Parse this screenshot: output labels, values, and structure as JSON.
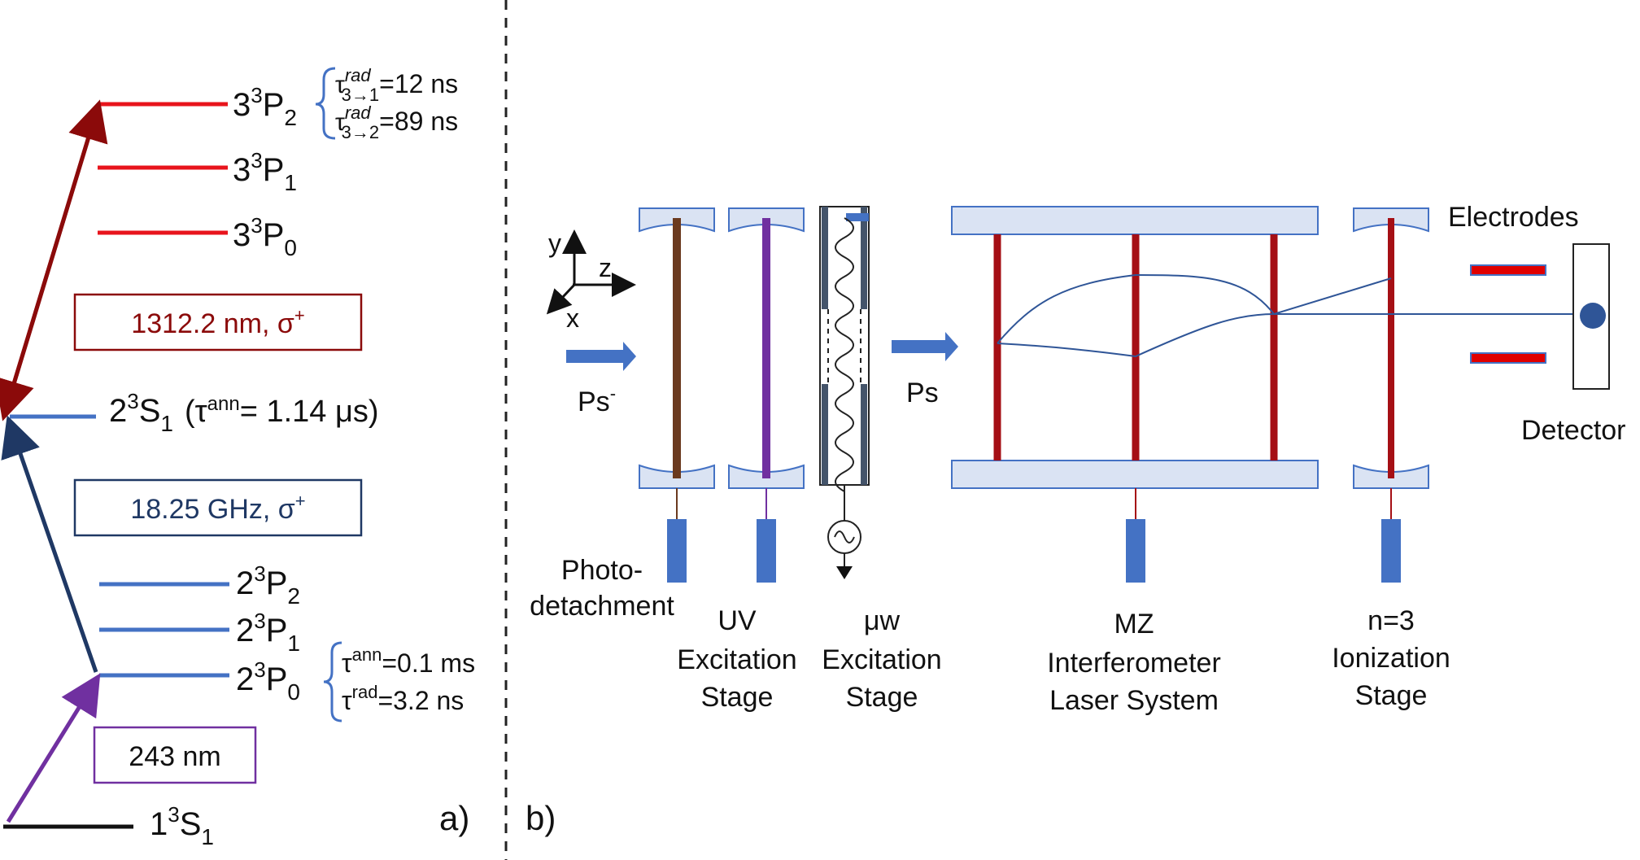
{
  "colors": {
    "red_level": "#e8141c",
    "blue_level": "#4472c4",
    "ground_level": "#111111",
    "dark_red": "#8b0a0a",
    "navy": "#1f3864",
    "purple": "#7030a0",
    "brown": "#6b3a1f",
    "mirror_fill": "#dae3f3",
    "beam_blue": "#2f5597",
    "electrode_red": "#e00000"
  },
  "panel_a": {
    "levels": [
      {
        "base": "3",
        "sup": "3",
        "main": "P",
        "sub": "2",
        "color": "red"
      },
      {
        "base": "3",
        "sup": "3",
        "main": "P",
        "sub": "1",
        "color": "red"
      },
      {
        "base": "3",
        "sup": "3",
        "main": "P",
        "sub": "0",
        "color": "red"
      },
      {
        "base": "2",
        "sup": "3",
        "main": "S",
        "sub": "1",
        "color": "blue",
        "extra_pre": "(τ",
        "extra_sup": "ann",
        "extra_post": "= 1.14 μs)"
      },
      {
        "base": "2",
        "sup": "3",
        "main": "P",
        "sub": "2",
        "color": "blue"
      },
      {
        "base": "2",
        "sup": "3",
        "main": "P",
        "sub": "1",
        "color": "blue"
      },
      {
        "base": "2",
        "sup": "3",
        "main": "P",
        "sub": "0",
        "color": "blue"
      },
      {
        "base": "1",
        "sup": "3",
        "main": "S",
        "sub": "1",
        "color": "black"
      }
    ],
    "tau_3p": [
      {
        "sym": "τ",
        "sup": "rad",
        "sub": "3→1",
        "value": "=12 ns"
      },
      {
        "sym": "τ",
        "sup": "rad",
        "sub": "3→2",
        "value": "=89 ns"
      }
    ],
    "tau_2p": [
      {
        "sym": "τ",
        "sup": "ann",
        "value": "=0.1 ms"
      },
      {
        "sym": "τ",
        "sup": "rad",
        "value": "=3.2 ns"
      }
    ],
    "box_1312": {
      "text": "1312.2 nm, σ",
      "sup": "+"
    },
    "box_ghz": {
      "text": "18.25 GHz, σ",
      "sup": "+"
    },
    "box_243": {
      "text": "243 nm"
    },
    "label": "a)"
  },
  "panel_b": {
    "label": "b)",
    "axis_y": "y",
    "axis_z": "z",
    "axis_x": "x",
    "ps_minus": "Ps",
    "ps_minus_sup": "-",
    "ps": "Ps",
    "electrodes": "Electrodes",
    "detector": "Detector",
    "stage_photo": [
      "Photo-",
      "detachment"
    ],
    "stage_uv": [
      "UV",
      "Excitation",
      "Stage"
    ],
    "stage_mw": [
      "μw",
      "Excitation",
      "Stage"
    ],
    "stage_mz": [
      "MZ",
      "Interferometer",
      "Laser System"
    ],
    "stage_ion": [
      "n=3",
      "Ionization",
      "Stage"
    ]
  }
}
